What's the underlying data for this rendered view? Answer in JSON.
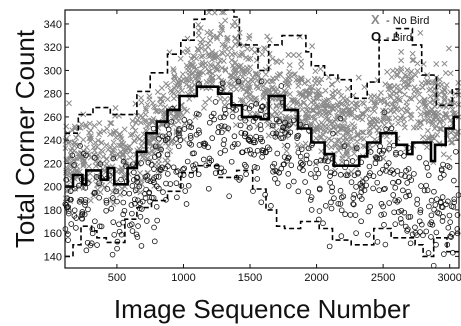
{
  "chart_data": {
    "type": "scatter",
    "xlabel": "Image Sequence Number",
    "ylabel": "Total Corner Count",
    "xlim": [
      110,
      3070
    ],
    "ylim": [
      130,
      352
    ],
    "x_ticks": [
      500,
      1000,
      1500,
      2000,
      2500,
      3000
    ],
    "y_ticks": [
      140,
      160,
      180,
      200,
      220,
      240,
      260,
      280,
      300,
      320,
      340
    ],
    "legend": {
      "placement": "top-right",
      "entries": [
        {
          "marker": "x",
          "label": "- No Bird",
          "color": "#8a8a8a"
        },
        {
          "marker": "o",
          "label": "- Bird",
          "color": "#111111"
        }
      ]
    },
    "series": [
      {
        "name": "No Bird",
        "marker": "x",
        "color": "#8a8a8a",
        "trend": [
          [
            110,
            228
          ],
          [
            300,
            222
          ],
          [
            600,
            230
          ],
          [
            900,
            262
          ],
          [
            1100,
            300
          ],
          [
            1300,
            312
          ],
          [
            1500,
            292
          ],
          [
            1700,
            272
          ],
          [
            1900,
            278
          ],
          [
            2100,
            258
          ],
          [
            2300,
            250
          ],
          [
            2550,
            268
          ],
          [
            2700,
            286
          ],
          [
            2850,
            266
          ],
          [
            3070,
            262
          ]
        ],
        "spread": 19,
        "count": 1400
      },
      {
        "name": "Bird",
        "marker": "o",
        "color": "#111111",
        "trend": [
          [
            110,
            188
          ],
          [
            300,
            185
          ],
          [
            500,
            180
          ],
          [
            700,
            192
          ],
          [
            900,
            222
          ],
          [
            1100,
            238
          ],
          [
            1300,
            246
          ],
          [
            1500,
            242
          ],
          [
            1700,
            232
          ],
          [
            1900,
            226
          ],
          [
            2100,
            210
          ],
          [
            2300,
            200
          ],
          [
            2500,
            206
          ],
          [
            2700,
            194
          ],
          [
            2850,
            178
          ],
          [
            3070,
            188
          ]
        ],
        "spread": 22,
        "count": 620
      }
    ],
    "lines": [
      {
        "style": "dashed-upper-bound",
        "points": [
          [
            110,
            246
          ],
          [
            210,
            246
          ],
          [
            210,
            262
          ],
          [
            320,
            262
          ],
          [
            320,
            268
          ],
          [
            450,
            268
          ],
          [
            450,
            262
          ],
          [
            650,
            262
          ],
          [
            650,
            282
          ],
          [
            750,
            282
          ],
          [
            750,
            298
          ],
          [
            880,
            298
          ],
          [
            880,
            314
          ],
          [
            980,
            314
          ],
          [
            980,
            326
          ],
          [
            1080,
            326
          ],
          [
            1080,
            344
          ],
          [
            1160,
            344
          ],
          [
            1160,
            352
          ],
          [
            1380,
            352
          ],
          [
            1380,
            346
          ],
          [
            1420,
            346
          ],
          [
            1420,
            322
          ],
          [
            1560,
            322
          ],
          [
            1560,
            300
          ],
          [
            1640,
            300
          ],
          [
            1640,
            322
          ],
          [
            1740,
            322
          ],
          [
            1740,
            330
          ],
          [
            1920,
            330
          ],
          [
            1920,
            316
          ],
          [
            1960,
            316
          ],
          [
            1960,
            304
          ],
          [
            2060,
            304
          ],
          [
            2060,
            296
          ],
          [
            2160,
            296
          ],
          [
            2160,
            292
          ],
          [
            2260,
            292
          ],
          [
            2260,
            276
          ],
          [
            2380,
            276
          ],
          [
            2380,
            290
          ],
          [
            2470,
            290
          ],
          [
            2470,
            326
          ],
          [
            2600,
            326
          ],
          [
            2600,
            336
          ],
          [
            2720,
            336
          ],
          [
            2720,
            322
          ],
          [
            2790,
            322
          ],
          [
            2790,
            296
          ],
          [
            2900,
            296
          ],
          [
            2900,
            270
          ],
          [
            3020,
            270
          ],
          [
            3020,
            284
          ],
          [
            3070,
            284
          ]
        ]
      },
      {
        "style": "solid-threshold",
        "points": [
          [
            110,
            200
          ],
          [
            170,
            200
          ],
          [
            170,
            210
          ],
          [
            240,
            210
          ],
          [
            240,
            202
          ],
          [
            270,
            202
          ],
          [
            270,
            214
          ],
          [
            380,
            214
          ],
          [
            380,
            206
          ],
          [
            430,
            206
          ],
          [
            430,
            216
          ],
          [
            480,
            216
          ],
          [
            480,
            202
          ],
          [
            580,
            202
          ],
          [
            580,
            216
          ],
          [
            650,
            216
          ],
          [
            650,
            230
          ],
          [
            720,
            230
          ],
          [
            720,
            246
          ],
          [
            800,
            246
          ],
          [
            800,
            256
          ],
          [
            880,
            256
          ],
          [
            880,
            266
          ],
          [
            970,
            266
          ],
          [
            970,
            278
          ],
          [
            1100,
            278
          ],
          [
            1100,
            286
          ],
          [
            1260,
            286
          ],
          [
            1260,
            280
          ],
          [
            1360,
            280
          ],
          [
            1360,
            270
          ],
          [
            1440,
            270
          ],
          [
            1440,
            260
          ],
          [
            1580,
            260
          ],
          [
            1580,
            258
          ],
          [
            1640,
            258
          ],
          [
            1640,
            278
          ],
          [
            1760,
            278
          ],
          [
            1760,
            266
          ],
          [
            1860,
            266
          ],
          [
            1860,
            250
          ],
          [
            1960,
            250
          ],
          [
            1960,
            238
          ],
          [
            2060,
            238
          ],
          [
            2060,
            228
          ],
          [
            2130,
            228
          ],
          [
            2130,
            218
          ],
          [
            2320,
            218
          ],
          [
            2320,
            226
          ],
          [
            2380,
            226
          ],
          [
            2380,
            238
          ],
          [
            2480,
            238
          ],
          [
            2480,
            246
          ],
          [
            2600,
            246
          ],
          [
            2600,
            236
          ],
          [
            2680,
            236
          ],
          [
            2680,
            228
          ],
          [
            2720,
            228
          ],
          [
            2720,
            238
          ],
          [
            2860,
            238
          ],
          [
            2860,
            222
          ],
          [
            2890,
            222
          ],
          [
            2890,
            236
          ],
          [
            2970,
            236
          ],
          [
            2970,
            250
          ],
          [
            3030,
            250
          ],
          [
            3030,
            260
          ],
          [
            3070,
            260
          ]
        ]
      },
      {
        "style": "dashed-lower-bound",
        "points": [
          [
            110,
            140
          ],
          [
            170,
            140
          ],
          [
            170,
            150
          ],
          [
            230,
            150
          ],
          [
            230,
            166
          ],
          [
            310,
            166
          ],
          [
            310,
            162
          ],
          [
            350,
            162
          ],
          [
            350,
            156
          ],
          [
            420,
            156
          ],
          [
            420,
            152
          ],
          [
            560,
            152
          ],
          [
            560,
            172
          ],
          [
            650,
            172
          ],
          [
            650,
            182
          ],
          [
            760,
            182
          ],
          [
            760,
            188
          ],
          [
            880,
            188
          ],
          [
            880,
            196
          ],
          [
            980,
            196
          ],
          [
            980,
            212
          ],
          [
            1100,
            212
          ],
          [
            1100,
            218
          ],
          [
            1260,
            218
          ],
          [
            1260,
            208
          ],
          [
            1400,
            208
          ],
          [
            1400,
            214
          ],
          [
            1520,
            214
          ],
          [
            1520,
            198
          ],
          [
            1620,
            198
          ],
          [
            1620,
            180
          ],
          [
            1700,
            180
          ],
          [
            1700,
            166
          ],
          [
            1760,
            166
          ],
          [
            1760,
            164
          ],
          [
            1880,
            164
          ],
          [
            1880,
            170
          ],
          [
            2020,
            170
          ],
          [
            2020,
            164
          ],
          [
            2120,
            164
          ],
          [
            2120,
            154
          ],
          [
            2260,
            154
          ],
          [
            2260,
            150
          ],
          [
            2430,
            150
          ],
          [
            2430,
            164
          ],
          [
            2560,
            164
          ],
          [
            2560,
            156
          ],
          [
            2740,
            156
          ],
          [
            2740,
            150
          ],
          [
            2800,
            150
          ],
          [
            2800,
            140
          ],
          [
            2880,
            140
          ],
          [
            2880,
            156
          ],
          [
            2980,
            156
          ],
          [
            2980,
            144
          ],
          [
            3070,
            144
          ]
        ]
      }
    ]
  }
}
